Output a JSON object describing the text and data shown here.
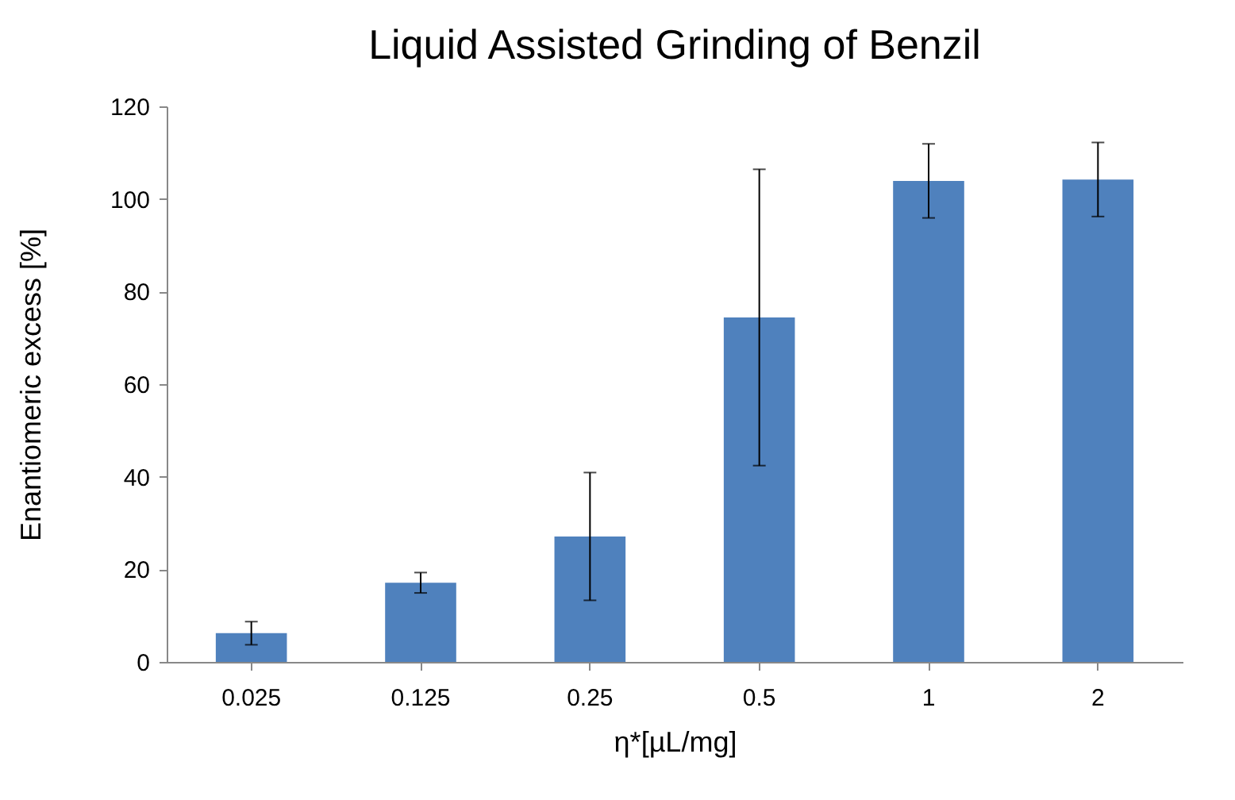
{
  "chart_data": {
    "type": "bar",
    "title": "Liquid Assisted Grinding of Benzil",
    "xlabel": "η*[µL/mg]",
    "ylabel": "Enantiomeric excess [%]",
    "categories": [
      "0.025",
      "0.125",
      "0.25",
      "0.5",
      "1",
      "2"
    ],
    "values": [
      6.2,
      17.1,
      27.1,
      74.4,
      103.9,
      104.2
    ],
    "errors": [
      2.5,
      2.2,
      13.8,
      32,
      8,
      8
    ],
    "color": "#4f81bd",
    "ylim": [
      0,
      120
    ],
    "yticks": [
      0,
      20,
      40,
      60,
      80,
      100,
      120
    ],
    "grid": false
  }
}
